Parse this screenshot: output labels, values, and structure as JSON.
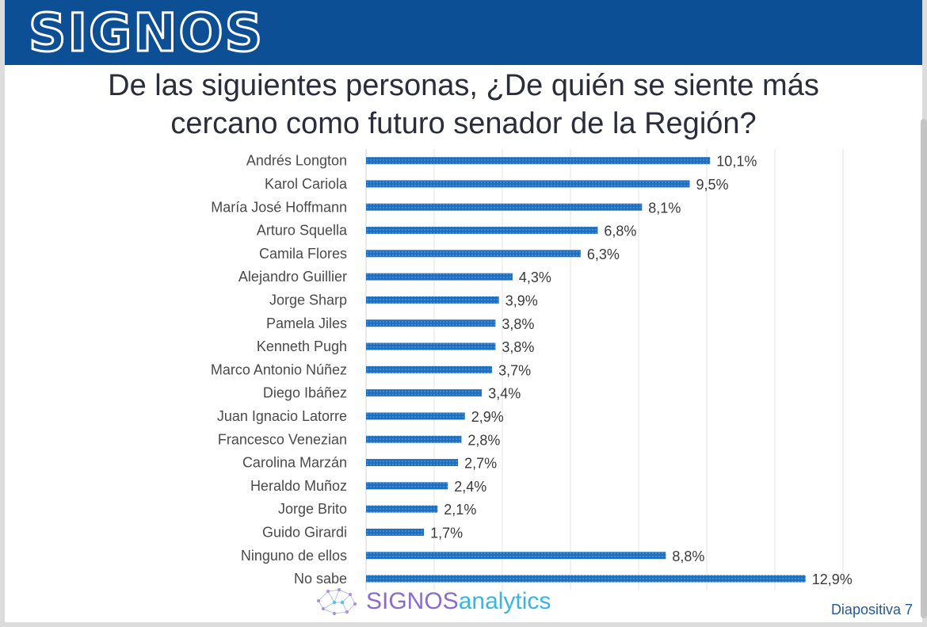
{
  "header": {
    "brand": "SIGNOS"
  },
  "title_lines": [
    "De las siguientes personas, ¿De quién se siente más",
    "cercano como futuro senador de la Región?"
  ],
  "chart_data": {
    "type": "bar",
    "orientation": "horizontal",
    "categories": [
      "Andrés Longton",
      "Karol Cariola",
      "María José Hoffmann",
      "Arturo Squella",
      "Camila Flores",
      "Alejandro Guillier",
      "Jorge Sharp",
      "Pamela Jiles",
      "Kenneth Pugh",
      "Marco Antonio Núñez",
      "Diego Ibáñez",
      "Juan Ignacio Latorre",
      "Francesco Venezian",
      "Carolina Marzán",
      "Heraldo Muñoz",
      "Jorge Brito",
      "Guido Girardi",
      "Ninguno de ellos",
      "No sabe"
    ],
    "values": [
      10.1,
      9.5,
      8.1,
      6.8,
      6.3,
      4.3,
      3.9,
      3.8,
      3.8,
      3.7,
      3.4,
      2.9,
      2.8,
      2.7,
      2.4,
      2.1,
      1.7,
      8.8,
      12.9
    ],
    "value_labels": [
      "10,1%",
      "9,5%",
      "8,1%",
      "6,8%",
      "6,3%",
      "4,3%",
      "3,9%",
      "3,8%",
      "3,8%",
      "3,7%",
      "3,4%",
      "2,9%",
      "2,8%",
      "2,7%",
      "2,4%",
      "2,1%",
      "1,7%",
      "8,8%",
      "12,9%"
    ],
    "xlim": [
      0,
      14
    ],
    "grid": true,
    "bar_color": "#1f6fc0",
    "title": "",
    "xlabel": "",
    "ylabel": ""
  },
  "footer": {
    "logo_part1": "SIGNOS",
    "logo_part2": "analytics",
    "slide_number": "Diapositiva 7"
  },
  "icons": {
    "logo_mark": "network-brain-icon"
  }
}
